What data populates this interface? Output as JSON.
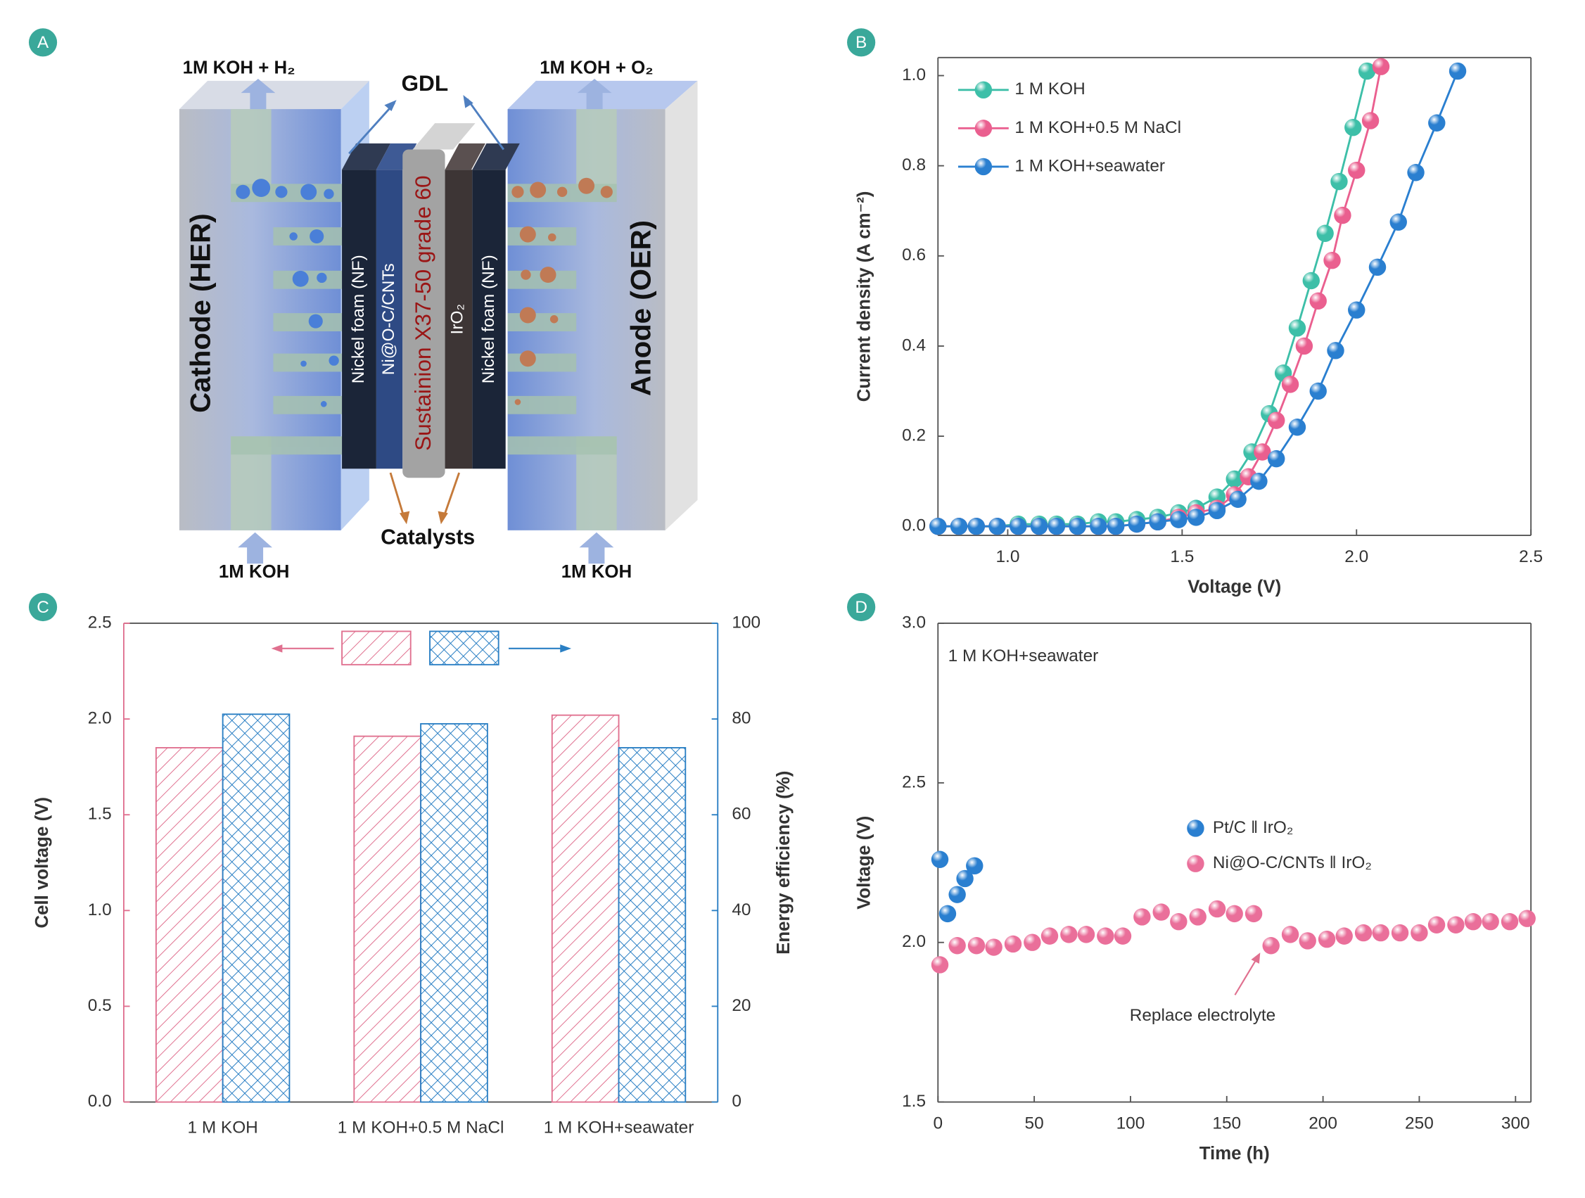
{
  "diagram": {
    "panel": "A",
    "cathode_outlet": "1M KOH + H₂",
    "gdl": "GDL",
    "anode_outlet": "1M KOH + O₂",
    "cathode": "Cathode (HER)",
    "anode": "Anode (OER)",
    "layers": [
      "Nickel foam (NF)",
      "Ni@O-C/CNTs",
      "Sustainion X37-50 grade 60",
      "IrO₂",
      "Nickel foam (NF)"
    ],
    "catalysts": "Catalysts",
    "cathode_inlet": "1M KOH",
    "anode_inlet": "1M KOH"
  },
  "chart_data": [
    {
      "panel": "B",
      "type": "line",
      "xlabel": "Voltage (V)",
      "ylabel": "Current density (A cm⁻²)",
      "xlim": [
        0.8,
        2.5
      ],
      "ylim": [
        -0.02,
        1.04
      ],
      "xticks": [
        {
          "value": 1,
          "label": "1.0"
        },
        1.5,
        {
          "value": 2,
          "label": "2.0"
        },
        2.5
      ],
      "yticks": [
        {
          "value": 0,
          "label": "0.0"
        },
        0.2,
        0.4,
        0.6,
        0.8,
        {
          "value": 1,
          "label": "1.0"
        }
      ],
      "legend": "upper-left",
      "series": [
        {
          "name": "1 M KOH",
          "color": "#3dbfa8",
          "x": [
            0.8,
            0.86,
            0.91,
            0.97,
            1.03,
            1.09,
            1.14,
            1.2,
            1.26,
            1.31,
            1.37,
            1.43,
            1.49,
            1.54,
            1.6,
            1.65,
            1.7,
            1.75,
            1.79,
            1.83,
            1.87,
            1.91,
            1.95,
            1.99,
            2.03
          ],
          "values": [
            0,
            0,
            0,
            0,
            0.005,
            0.005,
            0.005,
            0.005,
            0.01,
            0.01,
            0.015,
            0.02,
            0.03,
            0.04,
            0.065,
            0.105,
            0.165,
            0.25,
            0.34,
            0.44,
            0.545,
            0.65,
            0.765,
            0.885,
            1.01
          ]
        },
        {
          "name": "1 M KOH+0.5 M NaCl",
          "color": "#ea5f8f",
          "x": [
            0.8,
            0.86,
            0.91,
            0.97,
            1.03,
            1.09,
            1.14,
            1.2,
            1.26,
            1.31,
            1.37,
            1.43,
            1.49,
            1.54,
            1.6,
            1.65,
            1.69,
            1.73,
            1.77,
            1.81,
            1.85,
            1.89,
            1.93,
            1.96,
            2.0,
            2.04,
            2.07
          ],
          "values": [
            0,
            0,
            0,
            0,
            0,
            0,
            0,
            0,
            0,
            0,
            0.005,
            0.01,
            0.02,
            0.03,
            0.04,
            0.07,
            0.11,
            0.165,
            0.235,
            0.315,
            0.4,
            0.5,
            0.59,
            0.69,
            0.79,
            0.9,
            1.02
          ]
        },
        {
          "name": "1 M KOH+seawater",
          "color": "#2a7fd0",
          "x": [
            0.8,
            0.86,
            0.91,
            0.97,
            1.03,
            1.09,
            1.14,
            1.2,
            1.26,
            1.31,
            1.37,
            1.43,
            1.49,
            1.54,
            1.6,
            1.66,
            1.72,
            1.77,
            1.83,
            1.89,
            1.94,
            2.0,
            2.06,
            2.12,
            2.17,
            2.23,
            2.29
          ],
          "values": [
            0,
            0,
            0,
            0,
            0,
            0,
            0,
            0,
            0,
            0,
            0.005,
            0.01,
            0.015,
            0.02,
            0.035,
            0.06,
            0.1,
            0.15,
            0.22,
            0.3,
            0.39,
            0.48,
            0.575,
            0.675,
            0.785,
            0.895,
            1.01
          ]
        }
      ]
    },
    {
      "panel": "C",
      "type": "bar",
      "ylabel": "Cell voltage (V)",
      "y2label": "Energy efficiency (%)",
      "categories": [
        "1 M KOH",
        "1 M KOH+0.5 M NaCl",
        "1 M KOH+seawater"
      ],
      "ylim": [
        0,
        2.5
      ],
      "yticks": [
        {
          "value": 0,
          "label": "0.0"
        },
        0.5,
        {
          "value": 1,
          "label": "1.0"
        },
        1.5,
        {
          "value": 2,
          "label": "2.0"
        },
        2.5
      ],
      "y2lim": [
        0,
        100
      ],
      "y2ticks": [
        0,
        20,
        40,
        60,
        80,
        100
      ],
      "series": [
        {
          "color": "#e0708f",
          "pattern": "diagonal",
          "values": [
            1.85,
            1.91,
            2.02
          ]
        },
        {
          "color": "#2a7fc4",
          "pattern": "crosshatch",
          "axis": "y2",
          "values": [
            81,
            79,
            74
          ]
        }
      ]
    },
    {
      "panel": "D",
      "type": "scatter",
      "xlabel": "Time (h)",
      "ylabel": "Voltage (V)",
      "xlim": [
        0,
        308
      ],
      "ylim": [
        1.5,
        3.0
      ],
      "xticks": [
        0,
        50,
        100,
        150,
        200,
        250,
        300
      ],
      "yticks": [
        1.5,
        {
          "value": 2,
          "label": "2.0"
        },
        2.5,
        {
          "value": 3,
          "label": "3.0"
        }
      ],
      "annotations": [
        "1 M KOH+seawater",
        "Replace electrolyte"
      ],
      "legend": "center",
      "series": [
        {
          "name": "Pt/C ǁ IrO₂",
          "color": "#2a7fd0",
          "x": [
            1,
            5,
            10,
            14,
            19
          ],
          "values": [
            2.26,
            2.09,
            2.15,
            2.2,
            2.24
          ]
        },
        {
          "name": "Ni@O-C/CNTs ǁ IrO₂",
          "color": "#ea6f9a",
          "x": [
            1,
            10,
            20,
            29,
            39,
            49,
            58,
            68,
            77,
            87,
            96,
            106,
            116,
            125,
            135,
            145,
            154,
            164,
            173,
            183,
            192,
            202,
            211,
            221,
            230,
            240,
            250,
            259,
            269,
            278,
            287,
            297,
            306
          ],
          "values": [
            1.93,
            1.99,
            1.99,
            1.985,
            1.995,
            2.0,
            2.02,
            2.025,
            2.025,
            2.02,
            2.02,
            2.08,
            2.095,
            2.065,
            2.08,
            2.105,
            2.09,
            2.09,
            1.99,
            2.025,
            2.005,
            2.01,
            2.02,
            2.03,
            2.03,
            2.03,
            2.03,
            2.055,
            2.055,
            2.065,
            2.065,
            2.065,
            2.075
          ]
        }
      ]
    }
  ]
}
